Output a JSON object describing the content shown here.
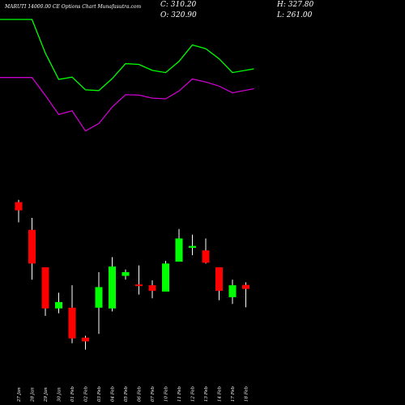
{
  "header": {
    "title": "MARUTI 14000.00 CE Options Chart Munafasutra.com",
    "close": "C: 310.20",
    "open": "O: 320.90",
    "high": "H: 327.80",
    "low": "L: 261.00"
  },
  "colors": {
    "background": "#000000",
    "up": "#00ff00",
    "down": "#ff0000",
    "upper_line": "#00ff00",
    "lower_line": "#cc00cc",
    "text": "#ffffff"
  },
  "chart_data": {
    "type": "candlestick",
    "x": [
      "27 Jan",
      "28 Jan",
      "29 Jan",
      "30 Jan",
      "01 Feb",
      "02 Feb",
      "03 Feb",
      "04 Feb",
      "05 Feb",
      "06 Feb",
      "07 Feb",
      "10 Feb",
      "11 Feb",
      "12 Feb",
      "13 Feb",
      "14 Feb",
      "17 Feb",
      "18 Feb"
    ],
    "candles": [
      {
        "open": 542,
        "high": 548,
        "low": 488,
        "close": 520
      },
      {
        "open": 468,
        "high": 500,
        "low": 335,
        "close": 378
      },
      {
        "open": 368,
        "high": 368,
        "low": 238,
        "close": 258
      },
      {
        "open": 258,
        "high": 300,
        "low": 245,
        "close": 275
      },
      {
        "open": 260,
        "high": 320,
        "low": 165,
        "close": 178
      },
      {
        "open": 180,
        "high": 185,
        "low": 148,
        "close": 170
      },
      {
        "open": 260,
        "high": 355,
        "low": 190,
        "close": 315
      },
      {
        "open": 258,
        "high": 395,
        "low": 250,
        "close": 370
      },
      {
        "open": 345,
        "high": 362,
        "low": 335,
        "close": 355
      },
      {
        "open": 322,
        "high": 373,
        "low": 295,
        "close": 318
      },
      {
        "open": 320,
        "high": 333,
        "low": 285,
        "close": 305
      },
      {
        "open": 303,
        "high": 385,
        "low": 303,
        "close": 378
      },
      {
        "open": 383,
        "high": 470,
        "low": 383,
        "close": 445
      },
      {
        "open": 420,
        "high": 455,
        "low": 400,
        "close": 425
      },
      {
        "open": 413,
        "high": 445,
        "low": 378,
        "close": 380
      },
      {
        "open": 368,
        "high": 368,
        "low": 280,
        "close": 305
      },
      {
        "open": 288,
        "high": 335,
        "low": 270,
        "close": 320
      },
      {
        "open": 320.9,
        "high": 327.8,
        "low": 261,
        "close": 310.2
      }
    ],
    "upper_line": [
      1030,
      1030,
      940,
      870,
      876,
      842,
      840,
      872,
      912,
      910,
      894,
      888,
      918,
      962,
      952,
      925,
      888,
      898
    ],
    "lower_line": [
      875,
      875,
      827,
      776,
      786,
      732,
      752,
      796,
      829,
      828,
      820,
      818,
      839,
      871,
      863,
      852,
      834,
      845
    ],
    "ylim": [
      0,
      1082
    ]
  }
}
